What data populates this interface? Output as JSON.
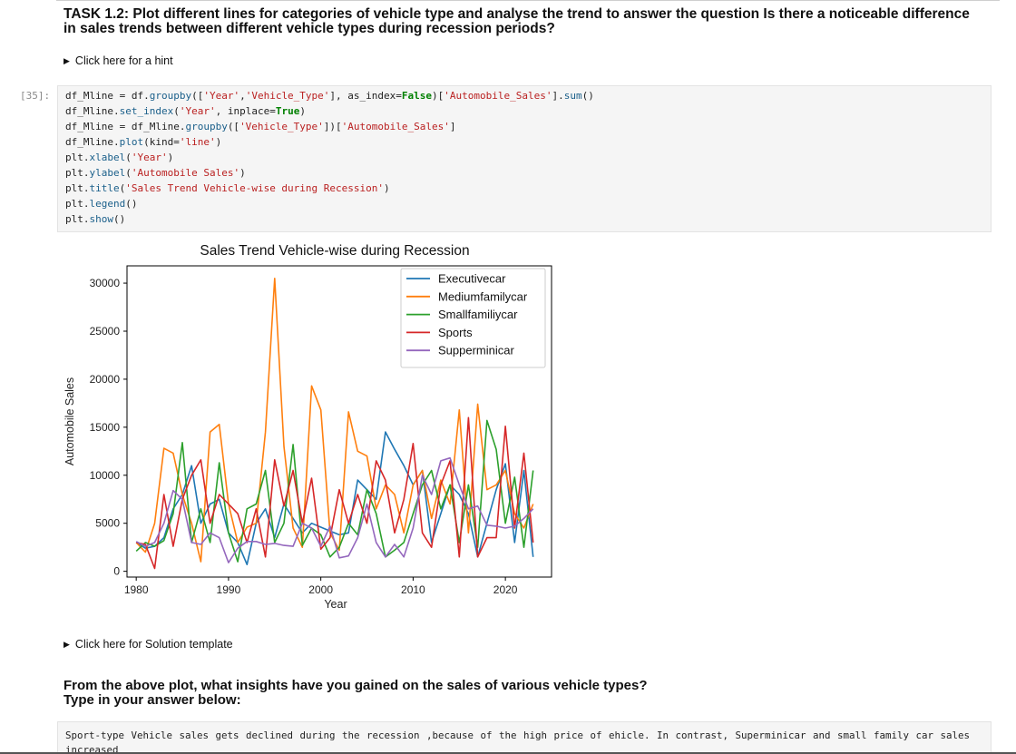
{
  "task": {
    "title": "TASK 1.2: Plot different lines for categories of vehicle type and analyse the trend to answer the question Is there a noticeable difference in sales trends between different vehicle types during recession periods?"
  },
  "hint_link": "Click here for a hint",
  "cell": {
    "prompt": "[35]:",
    "code": [
      "df_Mline = df.groupby(['Year','Vehicle_Type'], as_index=False)['Automobile_Sales'].sum()",
      "df_Mline.set_index('Year', inplace=True)",
      "df_Mline = df_Mline.groupby(['Vehicle_Type'])['Automobile_Sales']",
      "df_Mline.plot(kind='line')",
      "plt.xlabel('Year')",
      "plt.ylabel('Automobile Sales')",
      "plt.title('Sales Trend Vehicle-wise during Recession')",
      "plt.legend()",
      "plt.show()"
    ]
  },
  "solution_link": "Click here for Solution template",
  "question": {
    "line1": "From the above plot, what insights have you gained on the sales of various vehicle types?",
    "line2": "Type in your answer below:"
  },
  "answer": "Sport-type Vehicle sales gets declined during the recession ,because of the  high price of ehicle. In contrast, Superminicar and small family car sales increased",
  "chart_data": {
    "type": "line",
    "title": "Sales Trend Vehicle-wise during Recession",
    "xlabel": "Year",
    "ylabel": "Automobile Sales",
    "xlim": [
      1979,
      2025
    ],
    "ylim": [
      -600,
      31800
    ],
    "xticks": [
      "1980",
      "1990",
      "2000",
      "2010",
      "2020"
    ],
    "yticks": [
      "0",
      "5000",
      "10000",
      "15000",
      "20000",
      "25000",
      "30000"
    ],
    "legend_position": "upper-right",
    "grid": false,
    "x": [
      1980,
      1981,
      1982,
      1983,
      1984,
      1985,
      1986,
      1987,
      1988,
      1989,
      1990,
      1991,
      1992,
      1993,
      1994,
      1995,
      1996,
      1997,
      1998,
      1999,
      2000,
      2001,
      2002,
      2003,
      2004,
      2005,
      2006,
      2007,
      2008,
      2009,
      2010,
      2011,
      2012,
      2013,
      2014,
      2015,
      2016,
      2017,
      2018,
      2019,
      2020,
      2021,
      2022,
      2023
    ],
    "series": [
      {
        "name": "Executivecar",
        "color": "#1f77b4",
        "values": [
          3000,
          2400,
          2600,
          3500,
          6500,
          8000,
          11000,
          5000,
          7000,
          7500,
          4000,
          3000,
          700,
          5000,
          6500,
          3500,
          7000,
          5500,
          4000,
          5000,
          4600,
          4200,
          3800,
          4000,
          9500,
          8500,
          7500,
          14500,
          12700,
          11000,
          9000,
          10500,
          3000,
          6000,
          9000,
          8000,
          6000,
          1500,
          5000,
          8500,
          11200,
          3000,
          10500,
          1500
        ]
      },
      {
        "name": "Mediumfamilycar",
        "color": "#ff7f0e",
        "values": [
          3000,
          2000,
          5000,
          12800,
          12300,
          8000,
          5000,
          1000,
          14500,
          15300,
          7000,
          3000,
          4600,
          5000,
          14500,
          30500,
          13000,
          4500,
          2500,
          19300,
          16800,
          4000,
          2200,
          16600,
          12500,
          12000,
          6500,
          9000,
          8000,
          4000,
          9000,
          10500,
          5500,
          9500,
          7000,
          16800,
          4000,
          17400,
          8500,
          9000,
          10500,
          6000,
          4500,
          7000
        ]
      },
      {
        "name": "Smallfamiliycar",
        "color": "#2ca02c",
        "values": [
          2100,
          3000,
          2600,
          3200,
          6000,
          13400,
          3000,
          6500,
          3000,
          11300,
          4000,
          1000,
          6500,
          7000,
          10500,
          3000,
          5000,
          13200,
          2700,
          4500,
          3800,
          1500,
          2500,
          5000,
          3800,
          8500,
          6000,
          1500,
          2200,
          3000,
          6000,
          9000,
          10500,
          6500,
          9000,
          3000,
          9000,
          2500,
          15700,
          12700,
          5000,
          9800,
          2500,
          10500
        ]
      },
      {
        "name": "Sports",
        "color": "#d62728",
        "values": [
          3000,
          2800,
          300,
          8000,
          2600,
          7500,
          10000,
          11600,
          5000,
          8000,
          7000,
          6000,
          3000,
          6500,
          1500,
          11600,
          6800,
          10500,
          5000,
          9700,
          2300,
          3500,
          8500,
          5000,
          8000,
          5000,
          11500,
          9500,
          4000,
          7500,
          13300,
          4000,
          2500,
          9000,
          11500,
          1500,
          16000,
          1500,
          3500,
          3500,
          15100,
          4500,
          12300,
          3000
        ]
      },
      {
        "name": "Supperminicar",
        "color": "#9467bd",
        "values": [
          3100,
          2600,
          3000,
          5000,
          8400,
          7500,
          3000,
          2800,
          4000,
          3500,
          900,
          2400,
          3100,
          3100,
          2800,
          2900,
          2700,
          2600,
          5000,
          4500,
          2600,
          4700,
          1400,
          1600,
          3500,
          7000,
          3000,
          1500,
          2800,
          1500,
          4500,
          10000,
          8000,
          11500,
          11800,
          9000,
          6500,
          6800,
          4800,
          4700,
          4500,
          4700,
          5500,
          6500
        ]
      }
    ]
  }
}
